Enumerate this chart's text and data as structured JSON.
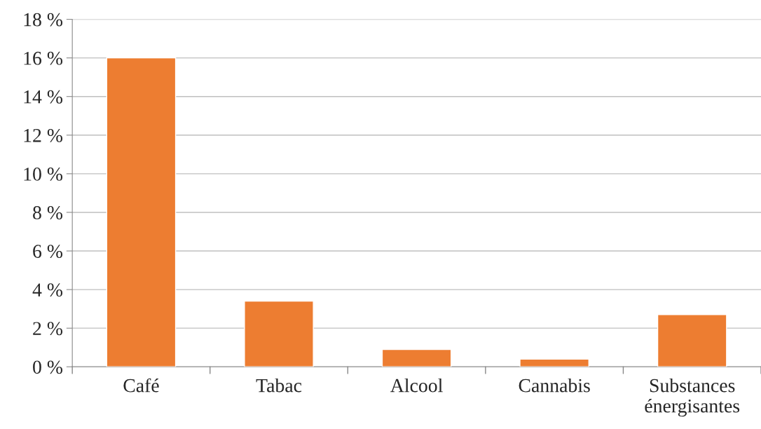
{
  "chart_data": {
    "type": "bar",
    "categories": [
      "Café",
      "Tabac",
      "Alcool",
      "Cannabis",
      "Substances\nénergisantes"
    ],
    "values": [
      16,
      3.4,
      0.9,
      0.4,
      2.7
    ],
    "color": "#ed7d31",
    "ylim": [
      0,
      18
    ],
    "yticks": [
      {
        "value": 0,
        "label": "0 %"
      },
      {
        "value": 2,
        "label": "2 %"
      },
      {
        "value": 4,
        "label": "4 %"
      },
      {
        "value": 6,
        "label": "6 %"
      },
      {
        "value": 8,
        "label": "8 %"
      },
      {
        "value": 10,
        "label": "10 %"
      },
      {
        "value": 12,
        "label": "12 %"
      },
      {
        "value": 14,
        "label": "14 %"
      },
      {
        "value": 16,
        "label": "16 %"
      },
      {
        "value": 18,
        "label": "18 %"
      }
    ],
    "grid": "y"
  }
}
